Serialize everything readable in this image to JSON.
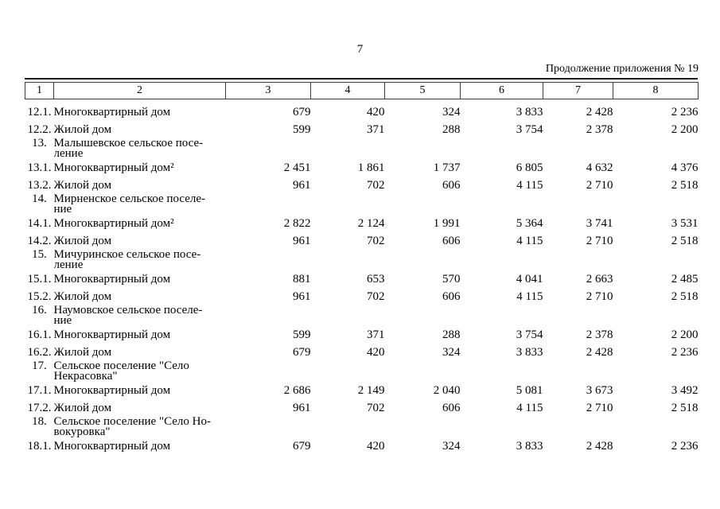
{
  "page": {
    "number": "7",
    "continuation_note": "Продолжение приложения № 19"
  },
  "colors": {
    "text": "#000000",
    "border": "#3c3c3c",
    "background": "#ffffff"
  },
  "table": {
    "column_numbers": [
      "1",
      "2",
      "3",
      "4",
      "5",
      "6",
      "7",
      "8"
    ],
    "rows": [
      {
        "num": "12.1.",
        "name": "Многоквартирный дом",
        "section": false,
        "values": [
          "679",
          "420",
          "324",
          "3 833",
          "2 428",
          "2 236"
        ]
      },
      {
        "num": "12.2.",
        "name": "Жилой дом",
        "section": false,
        "values": [
          "599",
          "371",
          "288",
          "3 754",
          "2 378",
          "2 200"
        ]
      },
      {
        "num": "13.",
        "name": "Малышевское сельское посе-\nление",
        "section": true,
        "values": [
          "",
          "",
          "",
          "",
          "",
          ""
        ]
      },
      {
        "num": "13.1.",
        "name": "Многоквартирный дом²",
        "section": false,
        "values": [
          "2 451",
          "1 861",
          "1 737",
          "6 805",
          "4 632",
          "4 376"
        ]
      },
      {
        "num": "13.2.",
        "name": "Жилой дом",
        "section": false,
        "values": [
          "961",
          "702",
          "606",
          "4 115",
          "2 710",
          "2 518"
        ]
      },
      {
        "num": "14.",
        "name": "Мирненское сельское поселе-\nние",
        "section": true,
        "values": [
          "",
          "",
          "",
          "",
          "",
          ""
        ]
      },
      {
        "num": "14.1.",
        "name": "Многоквартирный дом²",
        "section": false,
        "values": [
          "2 822",
          "2 124",
          "1 991",
          "5 364",
          "3 741",
          "3 531"
        ]
      },
      {
        "num": "14.2.",
        "name": "Жилой дом",
        "section": false,
        "values": [
          "961",
          "702",
          "606",
          "4 115",
          "2 710",
          "2 518"
        ]
      },
      {
        "num": "15.",
        "name": "Мичуринское сельское посе-\nление",
        "section": true,
        "values": [
          "",
          "",
          "",
          "",
          "",
          ""
        ]
      },
      {
        "num": "15.1.",
        "name": "Многоквартирный дом",
        "section": false,
        "values": [
          "881",
          "653",
          "570",
          "4 041",
          "2 663",
          "2 485"
        ]
      },
      {
        "num": "15.2.",
        "name": "Жилой дом",
        "section": false,
        "values": [
          "961",
          "702",
          "606",
          "4 115",
          "2 710",
          "2 518"
        ]
      },
      {
        "num": "16.",
        "name": "Наумовское сельское поселе-\nние",
        "section": true,
        "values": [
          "",
          "",
          "",
          "",
          "",
          ""
        ]
      },
      {
        "num": "16.1.",
        "name": "Многоквартирный дом",
        "section": false,
        "values": [
          "599",
          "371",
          "288",
          "3 754",
          "2 378",
          "2 200"
        ]
      },
      {
        "num": "16.2.",
        "name": "Жилой дом",
        "section": false,
        "values": [
          "679",
          "420",
          "324",
          "3 833",
          "2 428",
          "2 236"
        ]
      },
      {
        "num": "17.",
        "name": "Сельское поселение \"Село\nНекрасовка\"",
        "section": true,
        "values": [
          "",
          "",
          "",
          "",
          "",
          ""
        ]
      },
      {
        "num": "17.1.",
        "name": "Многоквартирный дом",
        "section": false,
        "values": [
          "2 686",
          "2 149",
          "2 040",
          "5 081",
          "3 673",
          "3 492"
        ]
      },
      {
        "num": "17.2.",
        "name": "Жилой дом",
        "section": false,
        "values": [
          "961",
          "702",
          "606",
          "4 115",
          "2 710",
          "2 518"
        ]
      },
      {
        "num": "18.",
        "name": "Сельское поселение \"Село Но-\nвокуровка\"",
        "section": true,
        "values": [
          "",
          "",
          "",
          "",
          "",
          ""
        ]
      },
      {
        "num": "18.1.",
        "name": "Многоквартирный дом",
        "section": false,
        "values": [
          "679",
          "420",
          "324",
          "3 833",
          "2 428",
          "2 236"
        ]
      }
    ]
  }
}
